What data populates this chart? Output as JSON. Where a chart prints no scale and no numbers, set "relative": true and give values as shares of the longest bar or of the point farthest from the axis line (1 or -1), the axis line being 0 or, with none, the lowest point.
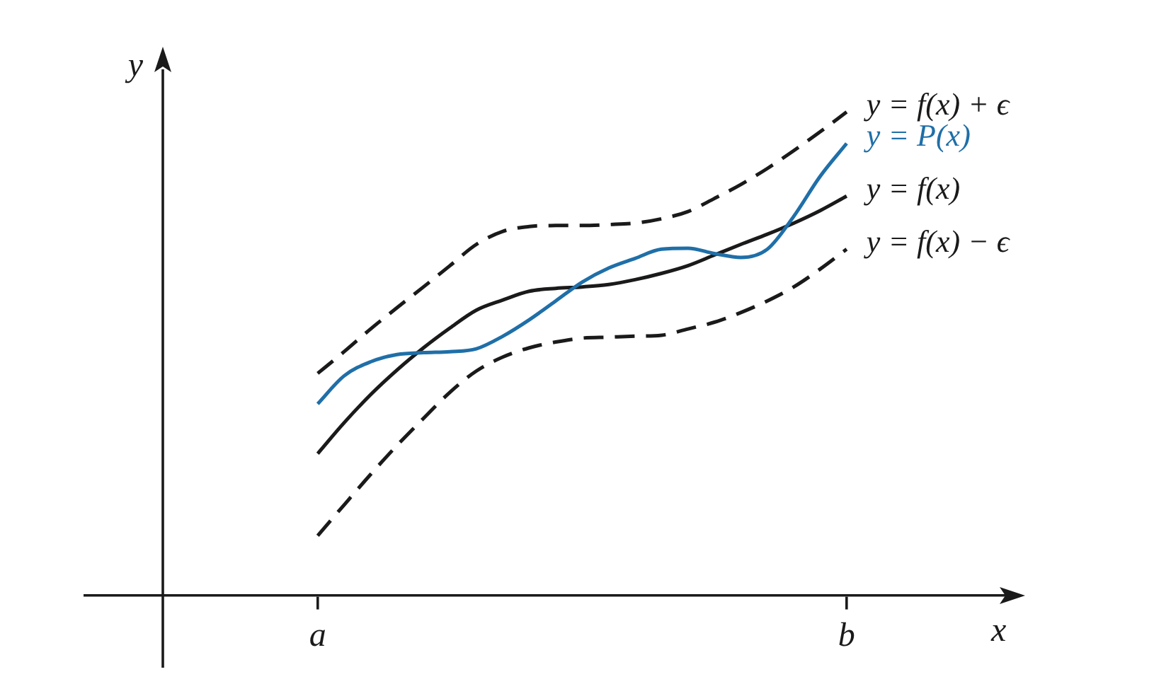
{
  "chart_data": {
    "type": "line",
    "relative": true,
    "xlabel": "x",
    "ylabel": "y",
    "categories": [
      "a",
      null,
      null,
      null,
      null,
      null,
      null,
      null,
      null,
      null,
      null,
      null,
      null,
      null,
      null,
      null,
      null,
      null,
      null,
      null,
      "b"
    ],
    "grid": false,
    "legend": false,
    "marker": "none",
    "series": [
      {
        "name": "y = f(x) + ϵ",
        "color": "#1a1a1a",
        "line_style": "dashed",
        "values": [
          0.459,
          0.504,
          0.551,
          0.595,
          0.638,
          0.682,
          0.726,
          0.753,
          0.763,
          0.765,
          0.765,
          0.767,
          0.77,
          0.779,
          0.794,
          0.821,
          0.85,
          0.883,
          0.92,
          0.959,
          1
        ]
      },
      {
        "name": "y = P(x)",
        "color": "#1f6fa8",
        "line_style": "solid",
        "values": [
          0.396,
          0.454,
          0.483,
          0.498,
          0.502,
          0.504,
          0.51,
          0.536,
          0.57,
          0.609,
          0.648,
          0.677,
          0.697,
          0.716,
          0.718,
          0.707,
          0.699,
          0.716,
          0.784,
          0.867,
          0.935
        ]
      },
      {
        "name": "y = f(x)",
        "color": "#1a1a1a",
        "line_style": "solid",
        "values": [
          0.293,
          0.357,
          0.415,
          0.466,
          0.512,
          0.553,
          0.59,
          0.611,
          0.629,
          0.635,
          0.638,
          0.643,
          0.653,
          0.666,
          0.682,
          0.704,
          0.726,
          0.747,
          0.77,
          0.796,
          0.826
        ]
      },
      {
        "name": "y = f(x) − ϵ",
        "color": "#1a1a1a",
        "line_style": "dashed",
        "values": [
          0.123,
          0.187,
          0.25,
          0.31,
          0.366,
          0.42,
          0.464,
          0.493,
          0.512,
          0.524,
          0.532,
          0.534,
          0.536,
          0.538,
          0.551,
          0.565,
          0.585,
          0.609,
          0.638,
          0.675,
          0.716
        ]
      }
    ]
  }
}
